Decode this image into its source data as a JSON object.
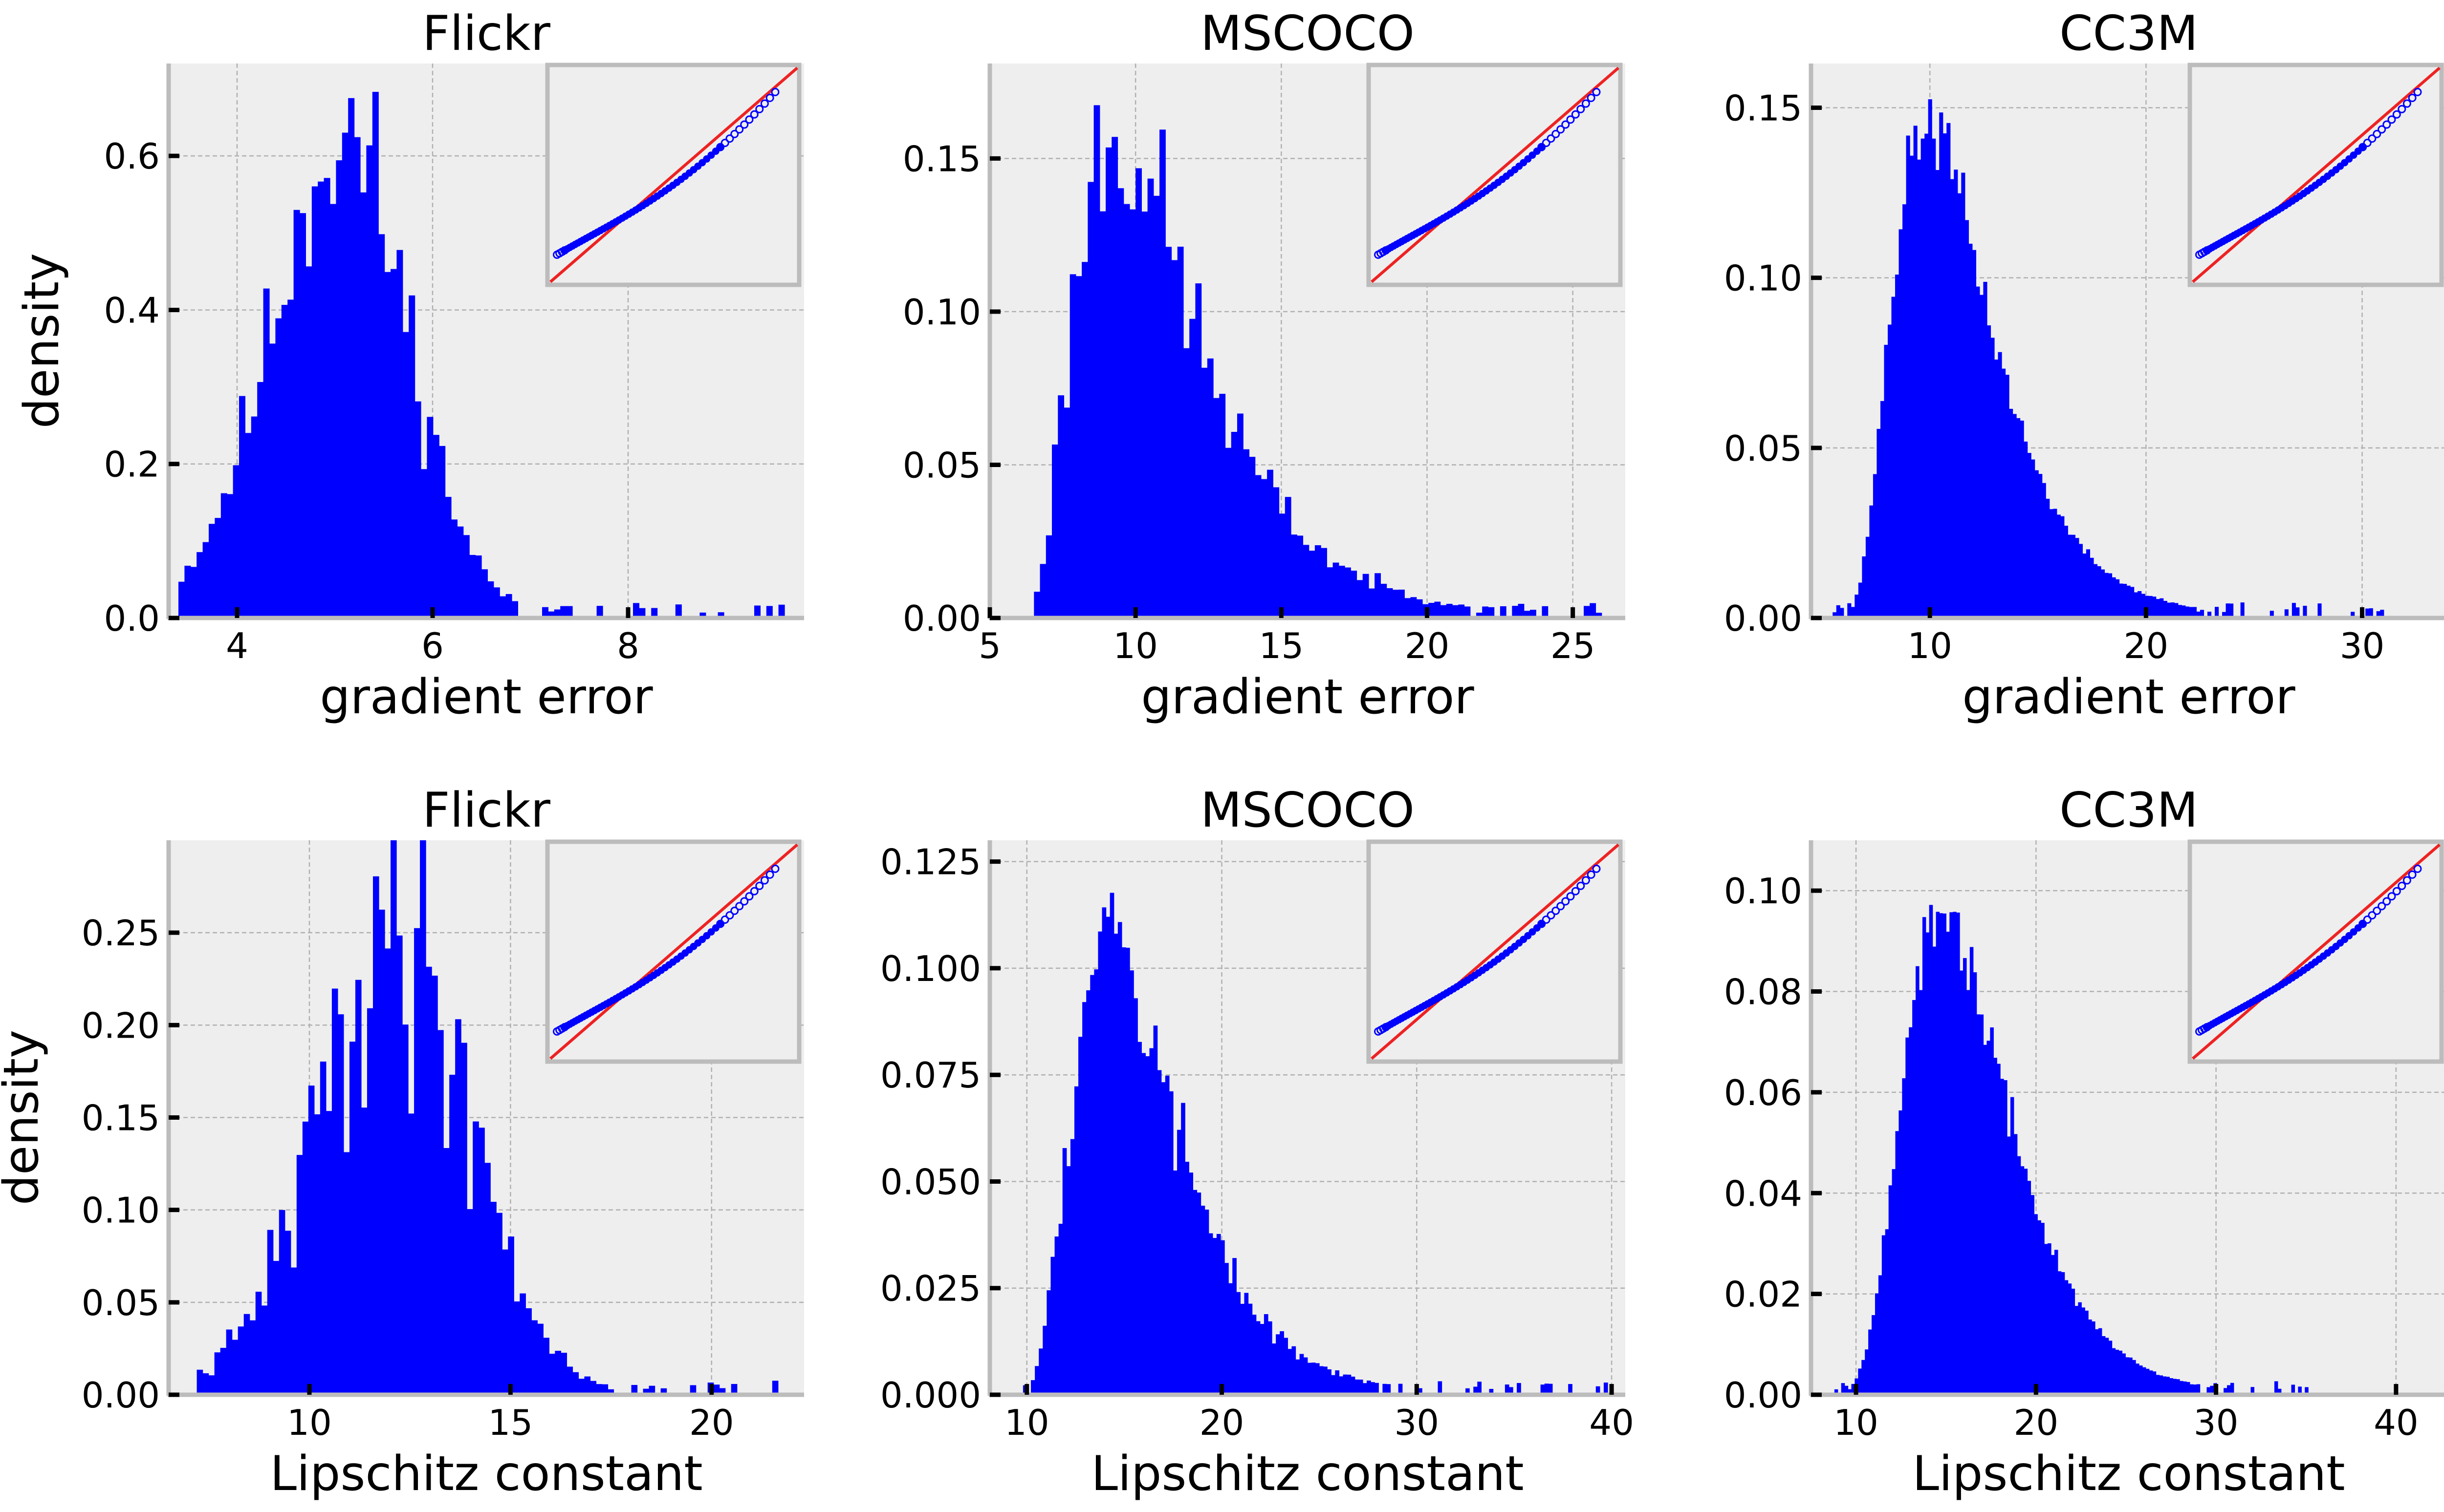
{
  "colors": {
    "bar": "#0000ff",
    "axes_bg": "#eeeeee",
    "spine": "#bcbcbc",
    "grid": "#b0b0b0",
    "qq_line": "#ee2222",
    "qq_points": "#0000ff",
    "figure_bg": "#ffffff"
  },
  "chart_data": [
    {
      "type": "bar",
      "subtype": "histogram",
      "title": "Flickr",
      "xlabel": "gradient error",
      "ylabel": "density",
      "xlim": [
        3.3,
        9.8
      ],
      "ylim": [
        0,
        0.72
      ],
      "xticks": [
        4,
        6,
        8
      ],
      "xtick_labels": [
        "4",
        "6",
        "8"
      ],
      "yticks": [
        0.0,
        0.2,
        0.4,
        0.6
      ],
      "ytick_labels": [
        "0.0",
        "0.2",
        "0.4",
        "0.6"
      ],
      "grid": true,
      "inset": "Q-Q plot",
      "dist": {
        "model": "normal",
        "lo": 3.4,
        "hi": 9.6,
        "bins": 100,
        "mean": 4.9,
        "sd": 0.72,
        "skew": 0.25,
        "peak": 0.67,
        "noise": 0.3,
        "seed": 11
      }
    },
    {
      "type": "bar",
      "subtype": "histogram",
      "title": "MSCOCO",
      "xlabel": "gradient error",
      "ylabel": "",
      "xlim": [
        5,
        26.8
      ],
      "ylim": [
        0,
        0.181
      ],
      "xticks": [
        5,
        10,
        15,
        20,
        25
      ],
      "xtick_labels": [
        "5",
        "10",
        "15",
        "20",
        "25"
      ],
      "yticks": [
        0.0,
        0.05,
        0.1,
        0.15
      ],
      "ytick_labels": [
        "0.00",
        "0.05",
        "0.10",
        "0.15"
      ],
      "grid": true,
      "inset": "Q-Q plot",
      "dist": {
        "model": "lognormal",
        "lo": 5.9,
        "hi": 26.4,
        "bins": 100,
        "shift": 5.5,
        "mu": 1.62,
        "sigma": 0.52,
        "peak": 0.17,
        "noise": 0.28,
        "seed": 23
      }
    },
    {
      "type": "bar",
      "subtype": "histogram",
      "title": "CC3M",
      "xlabel": "gradient error",
      "ylabel": "",
      "xlim": [
        4.5,
        33.9
      ],
      "ylim": [
        0,
        0.163
      ],
      "xticks": [
        10,
        20,
        30
      ],
      "xtick_labels": [
        "10",
        "20",
        "30"
      ],
      "yticks": [
        0.0,
        0.05,
        0.1,
        0.15
      ],
      "ytick_labels": [
        "0.00",
        "0.05",
        "0.10",
        "0.15"
      ],
      "grid": true,
      "inset": "Q-Q plot",
      "dist": {
        "model": "lognormal",
        "lo": 5.5,
        "hi": 31.0,
        "bins": 150,
        "shift": 5.0,
        "mu": 1.8,
        "sigma": 0.45,
        "peak": 0.155,
        "noise": 0.1,
        "seed": 37
      }
    },
    {
      "type": "bar",
      "subtype": "histogram",
      "title": "Flickr",
      "xlabel": "Lipschitz constant",
      "ylabel": "density",
      "xlim": [
        6.5,
        22.3
      ],
      "ylim": [
        0,
        0.3
      ],
      "xticks": [
        10,
        15,
        20
      ],
      "xtick_labels": [
        "10",
        "15",
        "20"
      ],
      "yticks": [
        0.0,
        0.05,
        0.1,
        0.15,
        0.2,
        0.25
      ],
      "ytick_labels": [
        "0.00",
        "0.05",
        "0.10",
        "0.15",
        "0.20",
        "0.25"
      ],
      "grid": true,
      "inset": "Q-Q plot",
      "dist": {
        "model": "normal",
        "lo": 7.2,
        "hi": 21.8,
        "bins": 100,
        "mean": 11.9,
        "sd": 1.9,
        "skew": 0.15,
        "peak": 0.27,
        "noise": 0.45,
        "seed": 41
      }
    },
    {
      "type": "bar",
      "subtype": "histogram",
      "title": "MSCOCO",
      "xlabel": "Lipschitz constant",
      "ylabel": "",
      "xlim": [
        8.1,
        40.7
      ],
      "ylim": [
        0,
        0.13
      ],
      "xticks": [
        10,
        20,
        30,
        40
      ],
      "xtick_labels": [
        "10",
        "20",
        "30",
        "40"
      ],
      "yticks": [
        0.0,
        0.025,
        0.05,
        0.075,
        0.1,
        0.125
      ],
      "ytick_labels": [
        "0.000",
        "0.025",
        "0.050",
        "0.075",
        "0.100",
        "0.125"
      ],
      "grid": true,
      "inset": "Q-Q plot",
      "dist": {
        "model": "lognormal",
        "lo": 9.6,
        "hi": 40.0,
        "bins": 150,
        "shift": 8.5,
        "mu": 1.95,
        "sigma": 0.45,
        "peak": 0.115,
        "noise": 0.22,
        "seed": 53
      }
    },
    {
      "type": "bar",
      "subtype": "histogram",
      "title": "CC3M",
      "xlabel": "Lipschitz constant",
      "ylabel": "",
      "xlim": [
        7.5,
        42.8
      ],
      "ylim": [
        0,
        0.11
      ],
      "xticks": [
        10,
        20,
        30,
        40
      ],
      "xtick_labels": [
        "10",
        "20",
        "30",
        "40"
      ],
      "yticks": [
        0.0,
        0.02,
        0.04,
        0.06,
        0.08,
        0.1
      ],
      "ytick_labels": [
        "0.00",
        "0.02",
        "0.04",
        "0.06",
        "0.08",
        "0.10"
      ],
      "grid": true,
      "inset": "Q-Q plot",
      "dist": {
        "model": "lognormal",
        "lo": 8.8,
        "hi": 37.0,
        "bins": 150,
        "shift": 7.0,
        "mu": 2.2,
        "sigma": 0.37,
        "peak": 0.1,
        "noise": 0.1,
        "seed": 67
      }
    }
  ]
}
